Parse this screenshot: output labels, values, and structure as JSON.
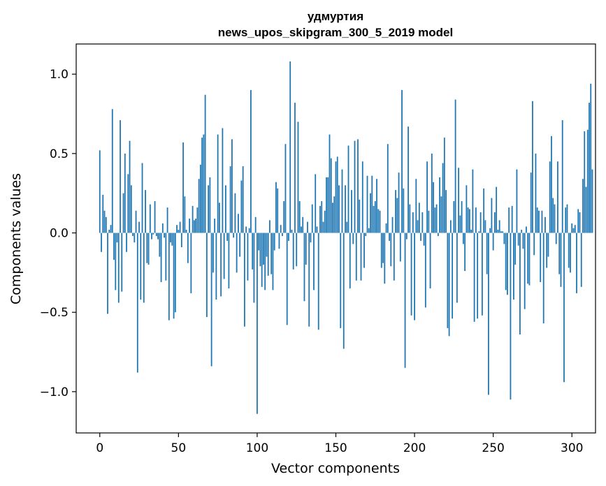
{
  "chart_data": {
    "type": "bar",
    "title": "удмуртия",
    "subtitle": "news_upos_skipgram_300_5_2019 model",
    "xlabel": "Vector components",
    "ylabel": "Components values",
    "xlim": [
      -15,
      315
    ],
    "ylim": [
      -1.26,
      1.19
    ],
    "xticks": [
      0,
      50,
      100,
      150,
      200,
      250,
      300
    ],
    "xtick_labels": [
      "0",
      "50",
      "100",
      "150",
      "200",
      "250",
      "300"
    ],
    "yticks": [
      -1.0,
      -0.5,
      0.0,
      0.5,
      1.0
    ],
    "ytick_labels": [
      "−1.0",
      "−0.5",
      "0.0",
      "0.5",
      "1.0"
    ],
    "grid": false,
    "bar_color": "#1f77b4",
    "values": [
      0.52,
      -0.12,
      0.24,
      0.14,
      0.1,
      -0.51,
      0.02,
      0.05,
      0.78,
      -0.17,
      -0.36,
      -0.06,
      -0.44,
      0.71,
      -0.37,
      0.25,
      0.5,
      -0.12,
      0.37,
      0.58,
      0.3,
      -0.02,
      -0.06,
      0.14,
      -0.88,
      0.07,
      -0.42,
      0.44,
      -0.44,
      0.27,
      -0.19,
      -0.2,
      0.18,
      -0.04,
      -0.01,
      0.2,
      -0.02,
      -0.04,
      -0.15,
      -0.31,
      0.06,
      -0.03,
      -0.3,
      0.16,
      -0.55,
      -0.06,
      -0.08,
      -0.54,
      -0.5,
      0.05,
      0.02,
      0.07,
      -0.09,
      0.57,
      0.23,
      0.02,
      -0.19,
      0.09,
      -0.38,
      0.17,
      0.08,
      0.09,
      0.16,
      0.34,
      0.43,
      0.6,
      0.62,
      0.87,
      -0.53,
      0.3,
      0.35,
      -0.84,
      -0.25,
      0.09,
      -0.42,
      0.62,
      0.19,
      -0.4,
      0.66,
      -0.29,
      0.3,
      -0.05,
      -0.35,
      0.42,
      0.59,
      -0.03,
      0.25,
      -0.25,
      0.12,
      -0.15,
      0.33,
      0.42,
      -0.59,
      0.04,
      -0.3,
      0.03,
      0.9,
      -0.23,
      -0.44,
      0.1,
      -1.14,
      -0.11,
      -0.21,
      -0.34,
      -0.2,
      -0.36,
      -0.15,
      -0.27,
      0.08,
      -0.26,
      -0.36,
      -0.11,
      0.32,
      0.28,
      -0.1,
      0.05,
      -0.02,
      0.2,
      0.56,
      -0.58,
      -0.05,
      1.08,
      0.02,
      -0.23,
      0.82,
      -0.21,
      0.7,
      0.2,
      0.04,
      0.1,
      -0.43,
      -0.2,
      0.07,
      -0.59,
      -0.06,
      0.18,
      -0.36,
      0.37,
      0.04,
      -0.61,
      0.17,
      0.2,
      0.07,
      0.14,
      0.35,
      0.35,
      0.62,
      0.47,
      0.19,
      0.23,
      0.45,
      0.48,
      0.3,
      -0.6,
      0.4,
      -0.73,
      0.3,
      0.07,
      0.55,
      -0.35,
      0.27,
      -0.07,
      0.58,
      -0.3,
      0.59,
      0.21,
      -0.3,
      0.45,
      -0.22,
      -0.02,
      0.36,
      0.03,
      0.25,
      0.36,
      0.17,
      0.2,
      0.34,
      0.15,
      0.14,
      -0.22,
      -0.19,
      -0.32,
      0.06,
      0.56,
      -0.05,
      -0.21,
      0.1,
      -0.3,
      0.27,
      0.22,
      0.38,
      -0.18,
      0.9,
      0.28,
      -0.85,
      -0.04,
      0.67,
      0.18,
      -0.52,
      0.13,
      -0.55,
      0.34,
      0.08,
      0.19,
      -0.05,
      0.13,
      -0.08,
      -0.47,
      0.45,
      0.14,
      -0.35,
      0.5,
      0.32,
      0.16,
      0.18,
      -0.02,
      0.35,
      0.23,
      0.44,
      0.6,
      0.27,
      -0.6,
      -0.65,
      0.08,
      -0.54,
      0.2,
      0.84,
      -0.44,
      0.41,
      0.11,
      0.2,
      -0.07,
      -0.24,
      0.3,
      0.16,
      0.15,
      0.02,
      0.4,
      -0.56,
      0.16,
      -0.54,
      0.01,
      0.13,
      -0.52,
      0.28,
      0.08,
      -0.26,
      -1.02,
      0.03,
      0.22,
      -0.11,
      0.13,
      0.29,
      0.02,
      0.08,
      0.01,
      0.01,
      -0.07,
      -0.36,
      -0.39,
      0.16,
      -1.05,
      0.17,
      -0.42,
      -0.2,
      0.4,
      -0.08,
      -0.64,
      0.02,
      -0.1,
      -0.48,
      0.04,
      -0.32,
      -0.33,
      0.38,
      0.83,
      -0.14,
      0.5,
      0.16,
      0.14,
      -0.31,
      0.14,
      -0.57,
      0.1,
      -0.22,
      -0.15,
      0.45,
      0.61,
      0.22,
      0.18,
      -0.07,
      0.45,
      -0.26,
      -0.34,
      0.71,
      -0.94,
      0.16,
      0.18,
      -0.22,
      -0.25,
      0.06,
      0.03,
      0.05,
      -0.38,
      0.15,
      0.13,
      -0.34,
      0.34,
      0.64,
      0.29,
      0.65,
      0.82,
      0.94,
      0.4
    ]
  }
}
